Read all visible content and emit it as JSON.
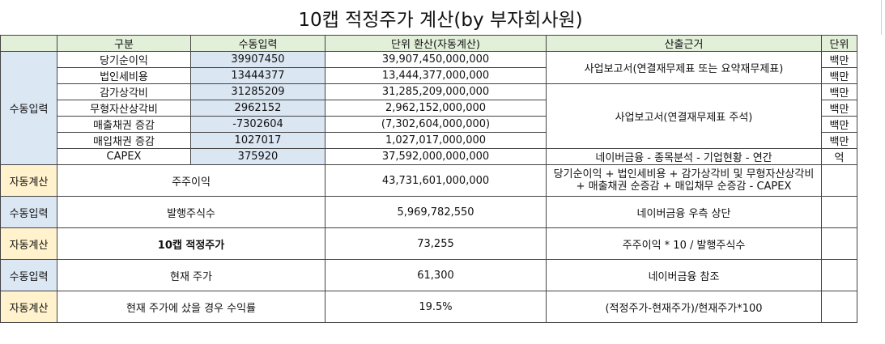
{
  "title": "10캡 적정주가 계산(by 부자회사원)",
  "headers": [
    "구분",
    "수동입력",
    "단위 환산(자동계산)",
    "산출근거",
    "단위"
  ],
  "categories": {
    "manual": "수동입력",
    "auto": "자동계산"
  },
  "rows": [
    {
      "item": "당기순이익",
      "input": "39907450",
      "converted": "39,907,450,000,000",
      "unit": "백만"
    },
    {
      "item": "법인세비용",
      "input": "13444377",
      "converted": "13,444,377,000,000",
      "unit": "백만"
    },
    {
      "item": "감가상각비",
      "input": "31285209",
      "converted": "31,285,209,000,000",
      "unit": "백만"
    },
    {
      "item": "무형자산상각비",
      "input": "2962152",
      "converted": "2,962,152,000,000",
      "unit": "백만"
    },
    {
      "item": "매출채권 증감",
      "input": "-7302604",
      "converted": "(7,302,604,000,000)",
      "unit": "백만"
    },
    {
      "item": "매입채권 증감",
      "input": "1027017",
      "converted": "1,027,017,000,000",
      "unit": "백만"
    },
    {
      "item": "CAPEX",
      "input": "375920",
      "converted": "37,592,000,000,000",
      "unit": "억"
    }
  ],
  "basis": {
    "group1": "사업보고서(연결재무제표 또는 요약재무제표)",
    "group2": "사업보고서(연결재무제표 주석)",
    "capex": "네이버금융 - 종목분석 - 기업현황 - 연간"
  },
  "summary": {
    "shareholder_profit_label": "주주이익",
    "shareholder_profit_value": "43,731,601,000,000",
    "shareholder_profit_basis": "당기순이익 + 법인세비용 + 감가상각비 및 무형자산상각비 + 매출채권 순증감 + 매입채무 순증감 - CAPEX",
    "shares_label": "발행주식수",
    "shares_value": "5,969,782,550",
    "shares_basis": "네이버금융 우측 상단",
    "fair_price_label": "10캡 적정주가",
    "fair_price_value": "73,255",
    "fair_price_basis": "주주이익 * 10 / 발행주식수",
    "current_price_label": "현재 주가",
    "current_price_value": "61,300",
    "current_price_basis": "네이버금융 참조",
    "return_label": "현재 주가에 샀을 경우 수익률",
    "return_value": "19.5%",
    "return_basis": "(적정주가-현재주가)/현재주가*100"
  },
  "colors": {
    "header_bg": "#e2efd9",
    "manual_bg": "#dce7f4",
    "auto_bg": "#fff2cc",
    "negative": "#d00000",
    "accent": "#1e9bd7"
  }
}
